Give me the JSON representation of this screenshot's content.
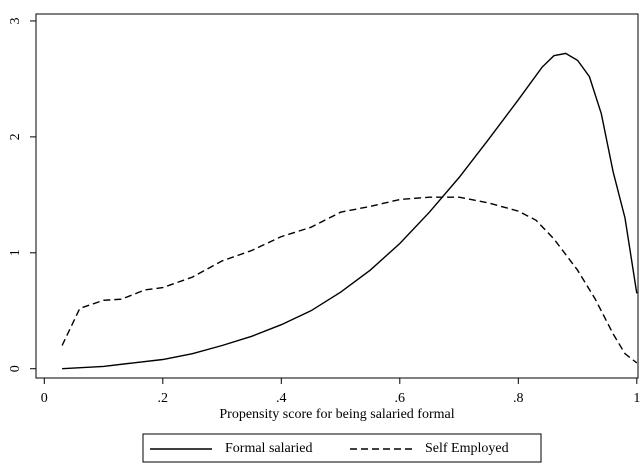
{
  "chart_data": {
    "type": "line",
    "xlabel": "Propensity score for being salaried formal",
    "xlim": [
      -0.014,
      1.002
    ],
    "ylim": [
      -0.08,
      3.06
    ],
    "xticks": [
      0,
      {
        "value": 0.2,
        "label": ".2"
      },
      {
        "value": 0.4,
        "label": ".4"
      },
      {
        "value": 0.6,
        "label": ".6"
      },
      {
        "value": 0.8,
        "label": ".8"
      },
      1
    ],
    "yticks": [
      0,
      1,
      2,
      3
    ],
    "legend": "bottom",
    "series": [
      {
        "name": "Formal salaried",
        "color": "#000000",
        "dash": "solid",
        "x": [
          0.03,
          0.1,
          0.15,
          0.2,
          0.25,
          0.3,
          0.35,
          0.4,
          0.45,
          0.5,
          0.55,
          0.6,
          0.65,
          0.7,
          0.75,
          0.8,
          0.84,
          0.86,
          0.88,
          0.9,
          0.92,
          0.94,
          0.96,
          0.98,
          1.0
        ],
        "values": [
          0,
          0.02,
          0.05,
          0.08,
          0.13,
          0.2,
          0.28,
          0.38,
          0.5,
          0.66,
          0.85,
          1.08,
          1.35,
          1.65,
          1.98,
          2.32,
          2.6,
          2.7,
          2.72,
          2.66,
          2.52,
          2.2,
          1.7,
          1.3,
          0.65
        ]
      },
      {
        "name": "Self Employed",
        "color": "#000000",
        "dash": "dashed",
        "x": [
          0.03,
          0.06,
          0.1,
          0.13,
          0.17,
          0.2,
          0.25,
          0.3,
          0.35,
          0.4,
          0.45,
          0.5,
          0.55,
          0.6,
          0.65,
          0.7,
          0.75,
          0.8,
          0.83,
          0.86,
          0.9,
          0.93,
          0.96,
          0.98,
          1.0
        ],
        "values": [
          0.2,
          0.52,
          0.59,
          0.6,
          0.68,
          0.7,
          0.79,
          0.93,
          1.02,
          1.14,
          1.22,
          1.35,
          1.4,
          1.46,
          1.48,
          1.48,
          1.43,
          1.36,
          1.28,
          1.12,
          0.85,
          0.6,
          0.3,
          0.13,
          0.05
        ]
      }
    ]
  }
}
